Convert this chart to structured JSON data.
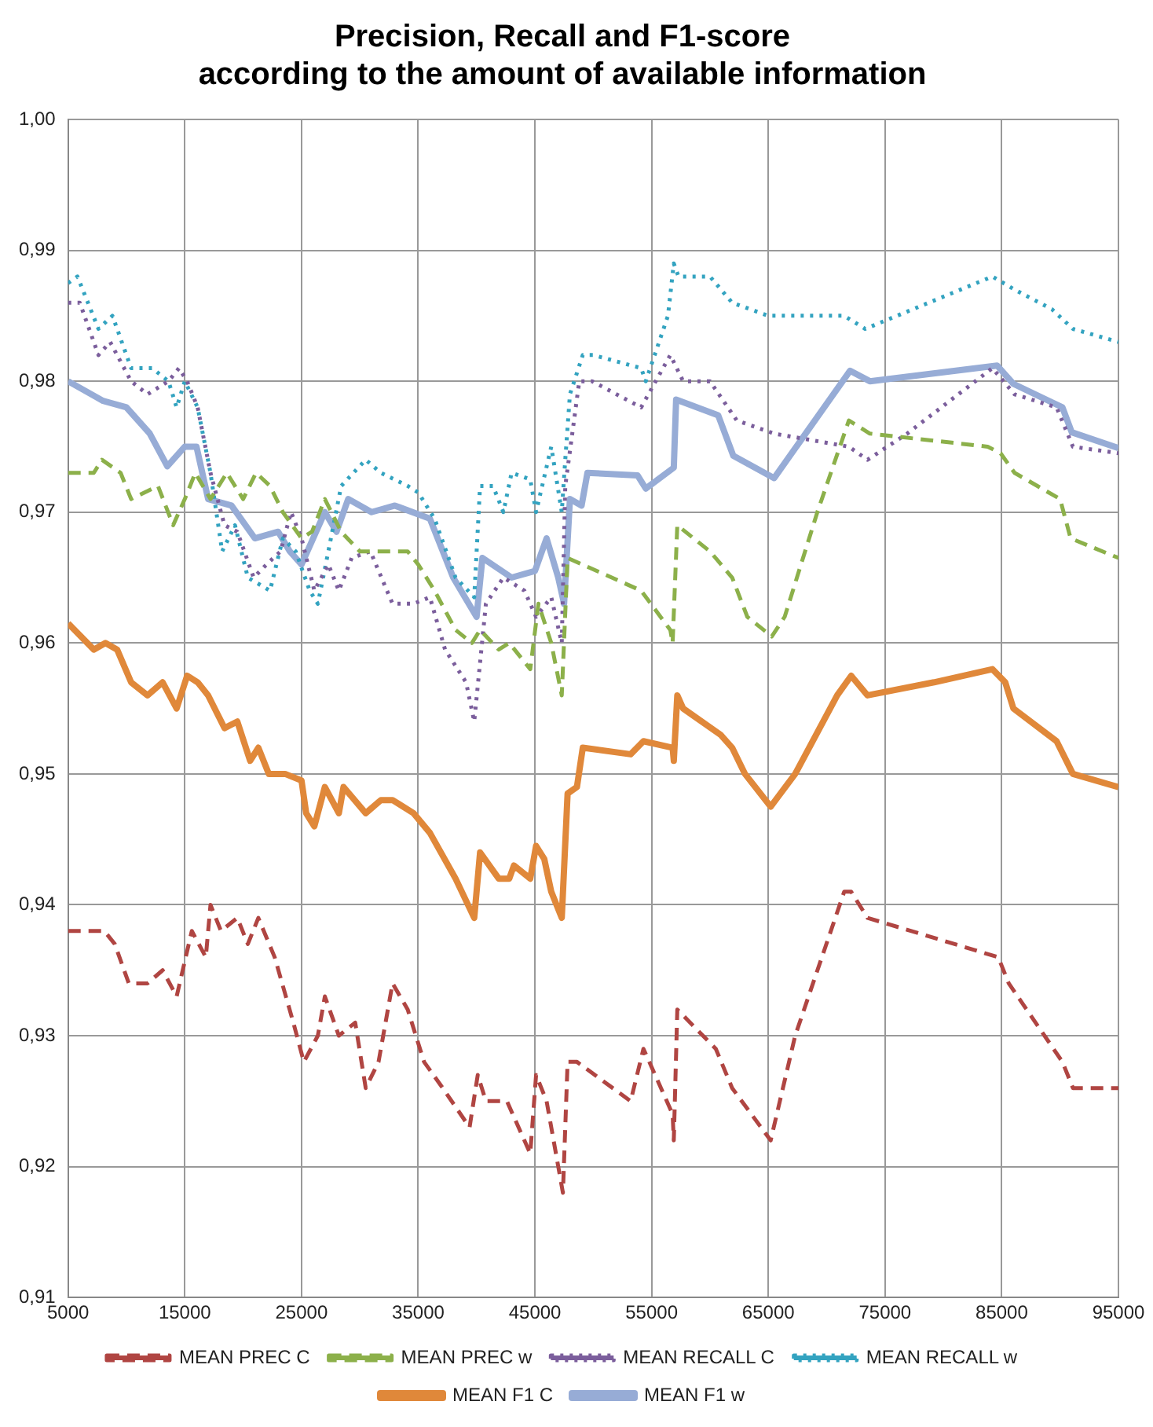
{
  "chart_data": {
    "type": "line",
    "title": "Precision, Recall and F1-score\naccording to the amount of available information",
    "xlim": [
      5000,
      95000
    ],
    "xticks": [
      5000,
      15000,
      25000,
      35000,
      45000,
      55000,
      65000,
      75000,
      85000,
      95000
    ],
    "ylim": [
      0.91,
      1.0
    ],
    "yticks": [
      {
        "value": 0.91,
        "label": "0,91"
      },
      {
        "value": 0.92,
        "label": "0,92"
      },
      {
        "value": 0.93,
        "label": "0,93"
      },
      {
        "value": 0.94,
        "label": "0,94"
      },
      {
        "value": 0.95,
        "label": "0,95"
      },
      {
        "value": 0.96,
        "label": "0,96"
      },
      {
        "value": 0.97,
        "label": "0,97"
      },
      {
        "value": 0.98,
        "label": "0,98"
      },
      {
        "value": 0.99,
        "label": "0,99"
      },
      {
        "value": 1.0,
        "label": "1,00"
      }
    ],
    "grid": true,
    "legend": "bottom",
    "marker": "none",
    "series": [
      {
        "name": "MEAN PREC C",
        "color": "#b04542",
        "line_style": "dashed",
        "x": [
          5000,
          8100,
          9000,
          10200,
          11800,
          13100,
          14300,
          15600,
          16800,
          17200,
          18100,
          19500,
          20400,
          21300,
          22700,
          24300,
          25200,
          26400,
          27000,
          28200,
          29600,
          30500,
          31600,
          32800,
          34100,
          35500,
          37100,
          39400,
          40100,
          40800,
          42600,
          44600,
          45100,
          46000,
          47400,
          47800,
          48600,
          53200,
          54300,
          56800,
          56900,
          57200,
          60500,
          61900,
          65200,
          67300,
          71500,
          72100,
          73500,
          84700,
          85600,
          90200,
          91100,
          95000
        ],
        "values": [
          0.938,
          0.938,
          0.937,
          0.934,
          0.934,
          0.935,
          0.933,
          0.938,
          0.936,
          0.94,
          0.938,
          0.939,
          0.937,
          0.939,
          0.936,
          0.931,
          0.928,
          0.93,
          0.933,
          0.93,
          0.931,
          0.926,
          0.928,
          0.934,
          0.932,
          0.928,
          0.926,
          0.923,
          0.927,
          0.925,
          0.925,
          0.921,
          0.927,
          0.925,
          0.918,
          0.928,
          0.928,
          0.925,
          0.929,
          0.924,
          0.922,
          0.932,
          0.929,
          0.926,
          0.922,
          0.93,
          0.941,
          0.941,
          0.939,
          0.936,
          0.934,
          0.928,
          0.926,
          0.926
        ]
      },
      {
        "name": "MEAN PREC w",
        "color": "#8cb04a",
        "line_style": "dashed",
        "x": [
          5000,
          7200,
          7900,
          9500,
          10400,
          12700,
          14000,
          15000,
          15900,
          17200,
          18600,
          20000,
          21100,
          22300,
          23400,
          25000,
          25900,
          27000,
          28400,
          30000,
          30900,
          34100,
          35000,
          36400,
          38200,
          39600,
          40300,
          41900,
          42800,
          44600,
          45300,
          46400,
          47300,
          47800,
          54100,
          56600,
          56800,
          57200,
          60000,
          61900,
          63200,
          65300,
          66400,
          69200,
          71900,
          73700,
          83800,
          84900,
          86100,
          90000,
          90900,
          95000
        ],
        "values": [
          0.973,
          0.973,
          0.974,
          0.973,
          0.971,
          0.972,
          0.969,
          0.971,
          0.973,
          0.971,
          0.973,
          0.971,
          0.973,
          0.972,
          0.97,
          0.968,
          0.9685,
          0.971,
          0.9685,
          0.967,
          0.967,
          0.967,
          0.966,
          0.964,
          0.961,
          0.96,
          0.961,
          0.9595,
          0.96,
          0.958,
          0.963,
          0.96,
          0.956,
          0.9665,
          0.964,
          0.961,
          0.96,
          0.969,
          0.967,
          0.965,
          0.962,
          0.9605,
          0.962,
          0.97,
          0.977,
          0.976,
          0.975,
          0.9745,
          0.973,
          0.971,
          0.968,
          0.9665
        ]
      },
      {
        "name": "MEAN RECALL C",
        "color": "#7b5e9c",
        "line_style": "dotted",
        "x": [
          5000,
          6000,
          7600,
          8600,
          10400,
          11800,
          13600,
          14500,
          15200,
          16100,
          17200,
          18400,
          19500,
          20900,
          22000,
          23200,
          24100,
          25000,
          26100,
          27300,
          28200,
          29300,
          30900,
          32800,
          34600,
          36000,
          37300,
          39100,
          39800,
          40800,
          42300,
          44100,
          45100,
          46400,
          47300,
          47600,
          48800,
          49900,
          54100,
          56600,
          57700,
          60000,
          62300,
          65500,
          71900,
          73500,
          76900,
          84200,
          86100,
          89700,
          91100,
          95000
        ],
        "values": [
          0.986,
          0.986,
          0.982,
          0.983,
          0.98,
          0.979,
          0.98,
          0.981,
          0.98,
          0.978,
          0.973,
          0.969,
          0.9685,
          0.965,
          0.966,
          0.967,
          0.97,
          0.968,
          0.964,
          0.966,
          0.964,
          0.9665,
          0.967,
          0.963,
          0.963,
          0.9635,
          0.9595,
          0.957,
          0.954,
          0.963,
          0.965,
          0.964,
          0.962,
          0.9635,
          0.96,
          0.972,
          0.98,
          0.98,
          0.978,
          0.982,
          0.98,
          0.98,
          0.977,
          0.976,
          0.975,
          0.974,
          0.976,
          0.981,
          0.979,
          0.978,
          0.975,
          0.9745
        ]
      },
      {
        "name": "MEAN RECALL w",
        "color": "#33a3c0",
        "line_style": "dotted",
        "x": [
          5000,
          5800,
          7600,
          8800,
          10400,
          12200,
          13600,
          14300,
          15000,
          16100,
          17200,
          18200,
          19300,
          20400,
          22300,
          23400,
          24500,
          25700,
          26400,
          27300,
          28400,
          30500,
          31800,
          34100,
          35000,
          36400,
          38200,
          39800,
          40300,
          41400,
          42300,
          43000,
          44600,
          45100,
          46400,
          47300,
          47600,
          48000,
          49100,
          50000,
          54100,
          54500,
          56400,
          56900,
          57300,
          60000,
          61900,
          65000,
          71500,
          73300,
          84200,
          86100,
          89300,
          91100,
          95000
        ],
        "values": [
          0.9875,
          0.988,
          0.984,
          0.985,
          0.981,
          0.981,
          0.98,
          0.978,
          0.98,
          0.978,
          0.973,
          0.967,
          0.969,
          0.965,
          0.964,
          0.968,
          0.967,
          0.964,
          0.963,
          0.967,
          0.972,
          0.974,
          0.973,
          0.972,
          0.9715,
          0.9695,
          0.965,
          0.9635,
          0.972,
          0.972,
          0.97,
          0.973,
          0.9725,
          0.97,
          0.975,
          0.97,
          0.974,
          0.979,
          0.982,
          0.982,
          0.981,
          0.98,
          0.985,
          0.989,
          0.988,
          0.988,
          0.986,
          0.985,
          0.985,
          0.984,
          0.988,
          0.987,
          0.9855,
          0.984,
          0.983
        ]
      },
      {
        "name": "MEAN F1 C",
        "color": "#e0883a",
        "line_style": "solid",
        "x": [
          5000,
          7200,
          8200,
          9200,
          10400,
          11800,
          13100,
          14300,
          15200,
          16100,
          17000,
          18400,
          19500,
          20600,
          21300,
          22200,
          23600,
          25000,
          25400,
          26100,
          27000,
          28200,
          28600,
          30500,
          31800,
          32800,
          34600,
          36000,
          38200,
          39800,
          40300,
          41900,
          42800,
          43200,
          44600,
          45100,
          45800,
          46400,
          47300,
          47800,
          48600,
          49100,
          53200,
          54300,
          56800,
          56900,
          57200,
          57700,
          60900,
          61900,
          63000,
          65200,
          67300,
          70900,
          72100,
          73500,
          79200,
          84200,
          85300,
          86000,
          89700,
          91100,
          95000
        ],
        "values": [
          0.9615,
          0.9595,
          0.96,
          0.9595,
          0.957,
          0.956,
          0.957,
          0.955,
          0.9575,
          0.957,
          0.956,
          0.9535,
          0.954,
          0.951,
          0.952,
          0.95,
          0.95,
          0.9495,
          0.947,
          0.946,
          0.949,
          0.947,
          0.949,
          0.947,
          0.948,
          0.948,
          0.947,
          0.9455,
          0.942,
          0.939,
          0.944,
          0.942,
          0.942,
          0.943,
          0.942,
          0.9445,
          0.9435,
          0.941,
          0.939,
          0.9485,
          0.949,
          0.952,
          0.9515,
          0.9525,
          0.952,
          0.951,
          0.956,
          0.955,
          0.953,
          0.952,
          0.95,
          0.9475,
          0.95,
          0.956,
          0.9575,
          0.956,
          0.957,
          0.958,
          0.957,
          0.955,
          0.9525,
          0.95,
          0.949
        ]
      },
      {
        "name": "MEAN F1 w",
        "color": "#97acd6",
        "line_style": "solid",
        "x": [
          5000,
          8000,
          10000,
          12000,
          13500,
          15000,
          16000,
          17000,
          19000,
          21000,
          23000,
          24000,
          25000,
          27000,
          28000,
          29000,
          31000,
          33000,
          36000,
          38000,
          40000,
          40500,
          43000,
          45000,
          46000,
          47000,
          47500,
          48000,
          49000,
          49500,
          53800,
          54500,
          56900,
          57100,
          60700,
          62000,
          65500,
          72000,
          73700,
          84600,
          86000,
          90200,
          91000,
          95000
        ],
        "values": [
          0.98,
          0.9785,
          0.978,
          0.976,
          0.9735,
          0.975,
          0.975,
          0.971,
          0.9705,
          0.968,
          0.9685,
          0.967,
          0.966,
          0.97,
          0.9685,
          0.971,
          0.97,
          0.9705,
          0.9695,
          0.965,
          0.962,
          0.9665,
          0.965,
          0.9655,
          0.968,
          0.965,
          0.963,
          0.971,
          0.9705,
          0.973,
          0.9728,
          0.9718,
          0.9734,
          0.9786,
          0.9774,
          0.9743,
          0.9726,
          0.9808,
          0.98,
          0.9812,
          0.9798,
          0.978,
          0.9761,
          0.9749
        ]
      }
    ]
  }
}
